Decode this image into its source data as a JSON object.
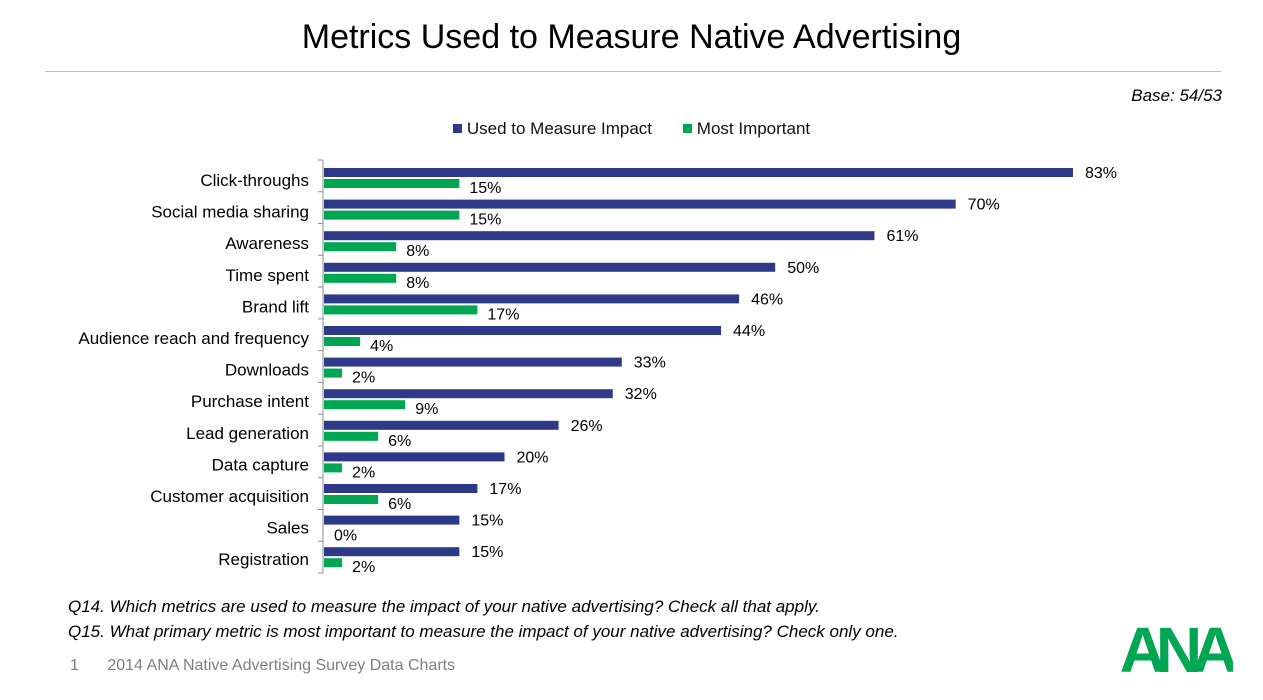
{
  "page": {
    "title": "Metrics Used to Measure Native Advertising",
    "base": "Base: 54/53",
    "q14": "Q14. Which metrics are used to measure the impact of your native advertising? Check all that apply.",
    "q15": "Q15. What primary metric is most important to measure the impact of your native advertising? Check only one.",
    "page_number": "1",
    "footer": "2014 ANA Native Advertising Survey Data Charts",
    "logo_text": "ANA"
  },
  "colors": {
    "used": "#2e3a87",
    "important": "#00a651",
    "logo": "#00a651"
  },
  "chart_data": {
    "type": "bar",
    "orientation": "horizontal",
    "categories": [
      "Click-throughs",
      "Social media sharing",
      "Awareness",
      "Time spent",
      "Brand lift",
      "Audience reach and frequency",
      "Downloads",
      "Purchase intent",
      "Lead generation",
      "Data capture",
      "Customer acquisition",
      "Sales",
      "Registration"
    ],
    "series": [
      {
        "name": "Used to Measure Impact",
        "values": [
          83,
          70,
          61,
          50,
          46,
          44,
          33,
          32,
          26,
          20,
          17,
          15,
          15
        ]
      },
      {
        "name": "Most Important",
        "values": [
          15,
          15,
          8,
          8,
          17,
          4,
          2,
          9,
          6,
          2,
          6,
          0,
          2
        ]
      }
    ],
    "value_suffix": "%",
    "xlim": [
      0,
      100
    ],
    "legend": "top-center",
    "grid": false
  }
}
